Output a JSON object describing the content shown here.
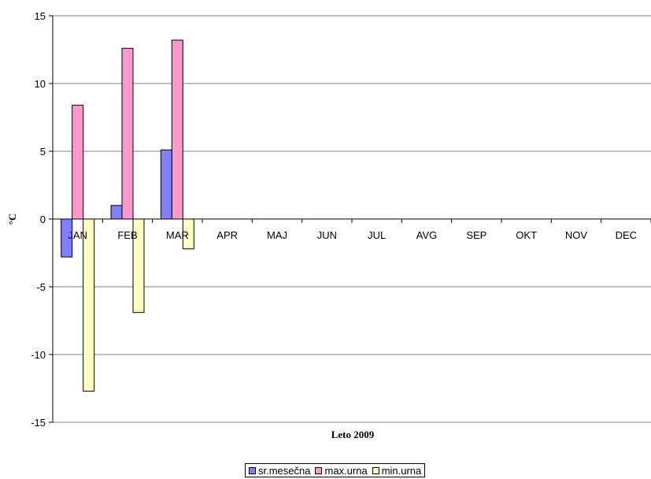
{
  "chart_data": {
    "type": "bar",
    "xlabel": "Leto 2009",
    "ylabel": "°C",
    "ylim": [
      -15,
      15
    ],
    "yticks": [
      15,
      10,
      5,
      0,
      -5,
      -10,
      -15
    ],
    "grid": true,
    "legend_position": "bottom",
    "categories": [
      "JAN",
      "FEB",
      "MAR",
      "APR",
      "MAJ",
      "JUN",
      "JUL",
      "AVG",
      "SEP",
      "OKT",
      "NOV",
      "DEC"
    ],
    "series": [
      {
        "name": "sr.mesečna",
        "color": "#8080ff",
        "values": [
          -2.8,
          1.0,
          5.1,
          null,
          null,
          null,
          null,
          null,
          null,
          null,
          null,
          null
        ]
      },
      {
        "name": "max.urna",
        "color": "#ff99cc",
        "values": [
          8.4,
          12.6,
          13.2,
          null,
          null,
          null,
          null,
          null,
          null,
          null,
          null,
          null
        ]
      },
      {
        "name": "min.urna",
        "color": "#ffffc0",
        "values": [
          -12.7,
          -6.9,
          -2.2,
          null,
          null,
          null,
          null,
          null,
          null,
          null,
          null,
          null
        ]
      }
    ]
  }
}
